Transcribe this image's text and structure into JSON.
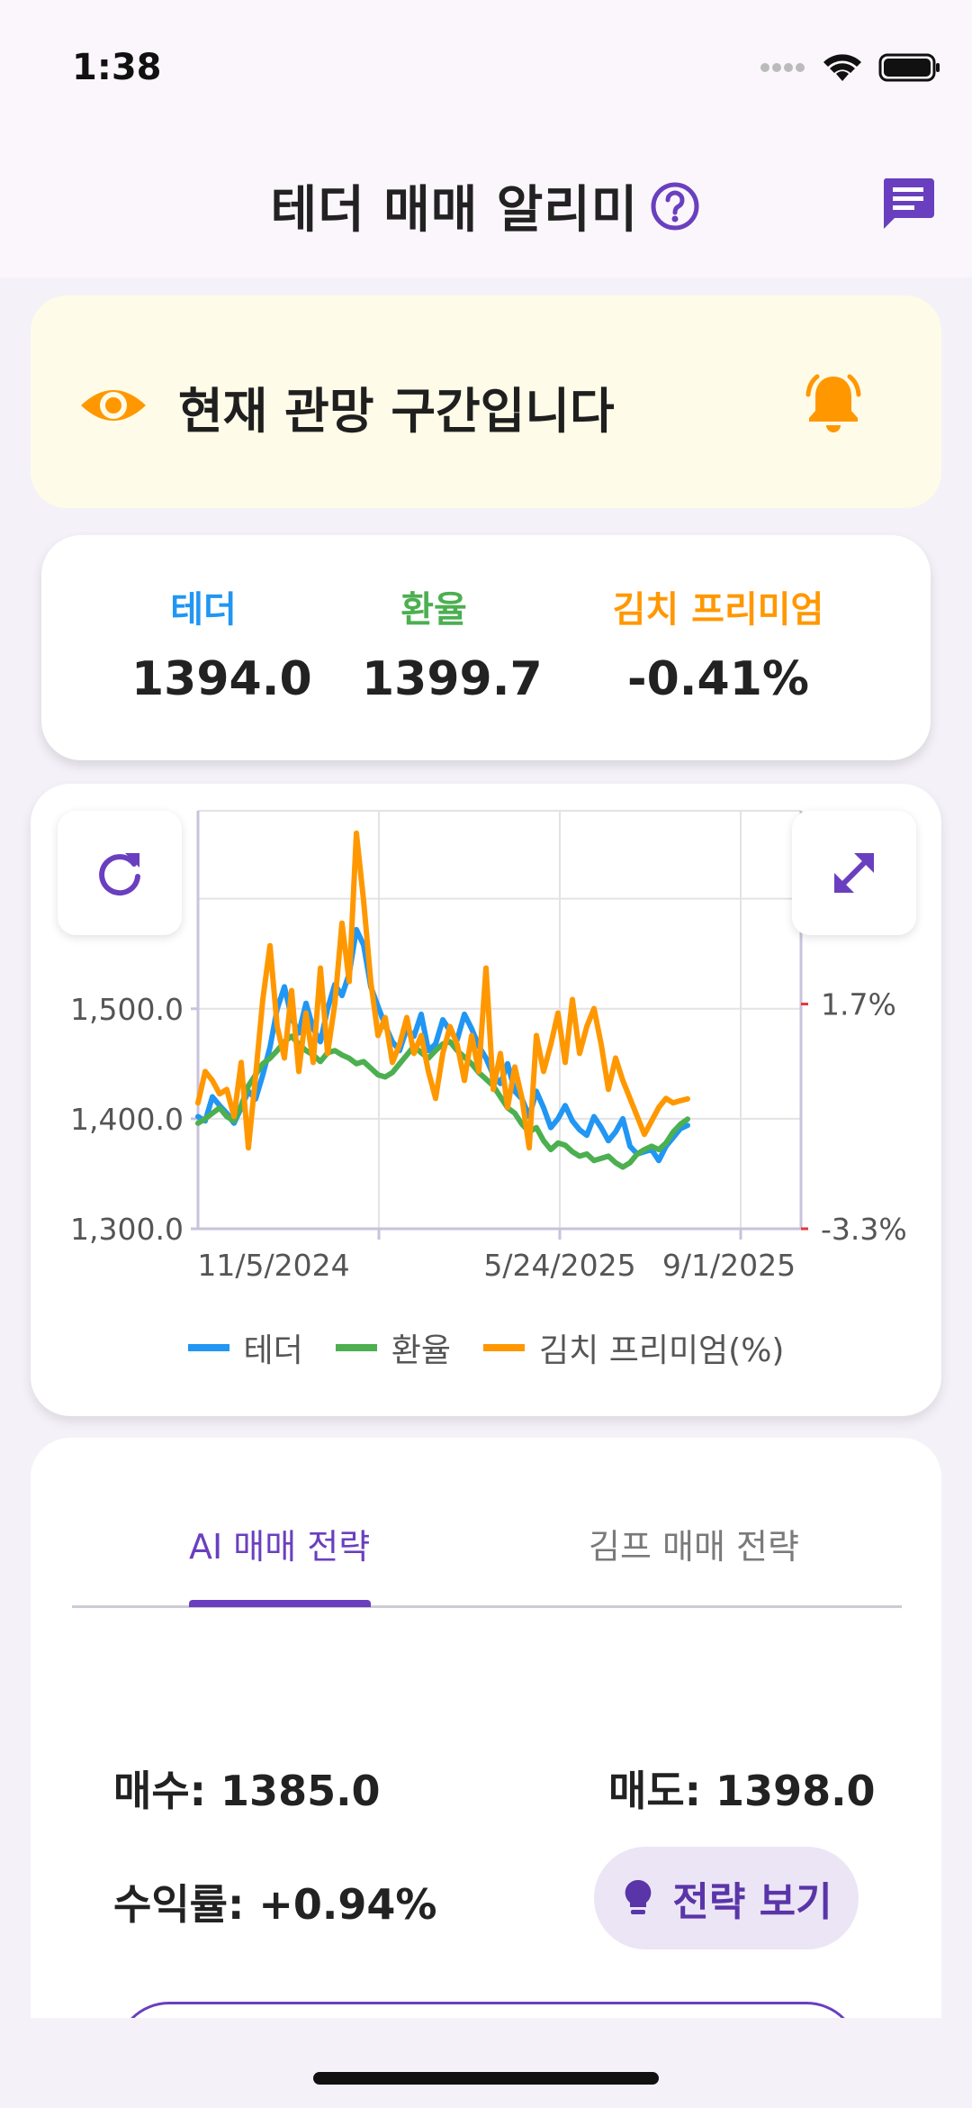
{
  "status": {
    "time": "1:38"
  },
  "app": {
    "title": "테더 매매 알리미"
  },
  "banner": {
    "text": "현재 관망 구간입니다"
  },
  "prices": {
    "tether": {
      "label": "테더",
      "value": "1394.0",
      "color": "#2196f3"
    },
    "rate": {
      "label": "환율",
      "value": "1399.7",
      "color": "#4caf50"
    },
    "kimp": {
      "label": "김치 프리미엄",
      "value": "-0.41%",
      "color": "#ff9800"
    }
  },
  "chart_data": {
    "type": "line",
    "x_ticks": [
      "11/5/2024",
      "5/24/2025",
      "9/1/2025"
    ],
    "y_left_ticks": [
      "1,300.0",
      "1,400.0",
      "1,500.0"
    ],
    "y_right_ticks": [
      "1.7%",
      "-3.3%"
    ],
    "ylim_left": [
      1300,
      1680
    ],
    "ylim_right": [
      -3.3,
      6.0
    ],
    "grid": true,
    "series": [
      {
        "name": "테더",
        "color": "#2196f3",
        "values": [
          1402,
          1398,
          1420,
          1412,
          1405,
          1396,
          1410,
          1425,
          1418,
          1440,
          1465,
          1500,
          1520,
          1492,
          1478,
          1505,
          1482,
          1470,
          1500,
          1522,
          1512,
          1532,
          1572,
          1558,
          1520,
          1502,
          1485,
          1470,
          1462,
          1482,
          1475,
          1495,
          1462,
          1468,
          1490,
          1480,
          1472,
          1495,
          1482,
          1466,
          1455,
          1440,
          1432,
          1450,
          1425,
          1418,
          1402,
          1425,
          1410,
          1392,
          1400,
          1412,
          1398,
          1390,
          1385,
          1402,
          1392,
          1380,
          1388,
          1400,
          1375,
          1368,
          1370,
          1372,
          1362,
          1375,
          1383,
          1391,
          1394
        ]
      },
      {
        "name": "환율",
        "color": "#4caf50",
        "values": [
          1396,
          1400,
          1405,
          1410,
          1402,
          1398,
          1412,
          1430,
          1440,
          1450,
          1455,
          1462,
          1470,
          1475,
          1468,
          1462,
          1458,
          1452,
          1460,
          1462,
          1458,
          1455,
          1450,
          1452,
          1446,
          1440,
          1438,
          1442,
          1450,
          1458,
          1466,
          1460,
          1455,
          1462,
          1468,
          1470,
          1462,
          1456,
          1450,
          1442,
          1436,
          1430,
          1420,
          1410,
          1405,
          1395,
          1388,
          1392,
          1380,
          1372,
          1378,
          1376,
          1370,
          1366,
          1368,
          1362,
          1364,
          1366,
          1360,
          1356,
          1360,
          1368,
          1372,
          1375,
          1372,
          1378,
          1388,
          1395,
          1399.7
        ]
      },
      {
        "name": "김치 프리미엄(%)",
        "color": "#ff9800",
        "values": [
          -0.5,
          0.2,
          0.0,
          -0.3,
          -0.2,
          -0.8,
          0.4,
          -1.5,
          0.1,
          1.8,
          3.0,
          1.2,
          0.5,
          2.0,
          0.2,
          1.5,
          0.4,
          2.5,
          0.6,
          1.7,
          3.5,
          2.2,
          5.5,
          4.0,
          2.2,
          1.0,
          1.4,
          0.4,
          0.8,
          1.4,
          0.6,
          1.0,
          0.2,
          -0.4,
          0.6,
          1.2,
          0.8,
          0.0,
          1.0,
          0.2,
          2.5,
          -0.2,
          0.6,
          -0.6,
          0.3,
          -0.4,
          -1.5,
          1.0,
          0.2,
          0.8,
          1.5,
          0.4,
          1.8,
          0.6,
          1.2,
          1.6,
          0.8,
          -0.2,
          0.5,
          0.0,
          -0.4,
          -0.8,
          -1.2,
          -0.9,
          -0.6,
          -0.4,
          -0.5,
          -0.45,
          -0.41
        ]
      }
    ]
  },
  "legend": [
    "테더",
    "환율",
    "김치 프리미엄(%)"
  ],
  "tabs": {
    "ai": "AI 매매 전략",
    "kimp": "김프 매매 전략"
  },
  "strategy": {
    "buy": "매수: 1385.0",
    "sell": "매도: 1398.0",
    "yield": "수익률: +0.94%",
    "view_button": "전략 보기"
  }
}
